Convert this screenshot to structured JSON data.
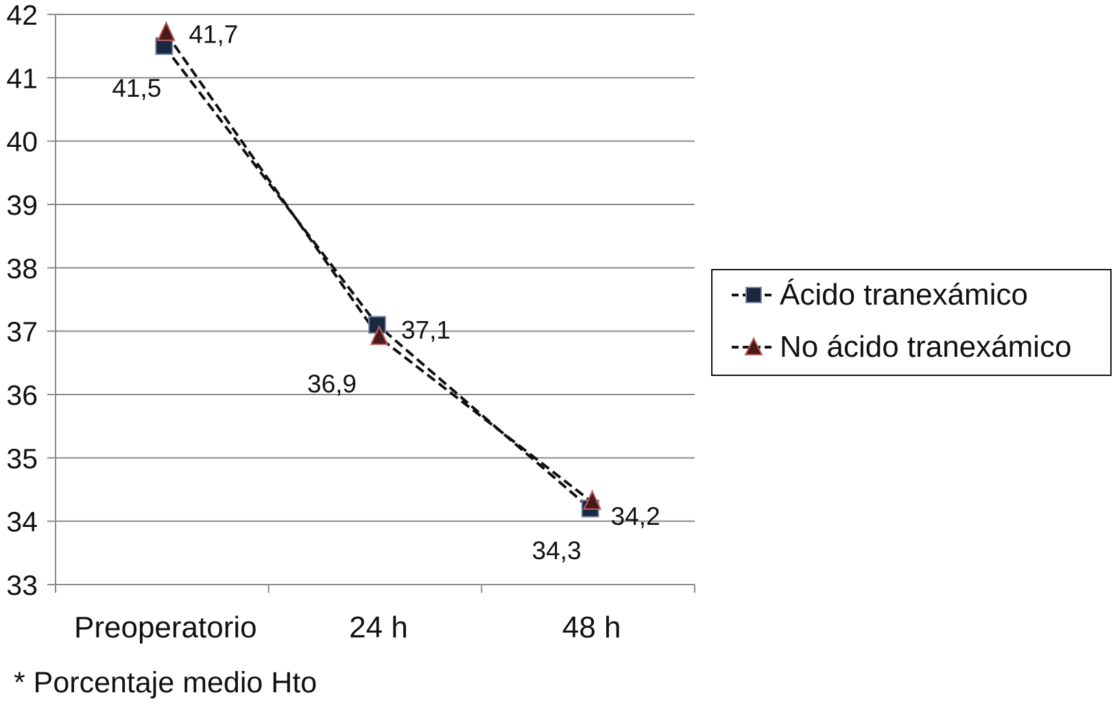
{
  "chart_data": {
    "type": "line",
    "categories": [
      "Preoperatorio",
      "24 h",
      "48 h"
    ],
    "series": [
      {
        "name": "Ácido tranexámico",
        "values": [
          41.5,
          37.1,
          34.2
        ],
        "labels": [
          "41,5",
          "37,1",
          "34,2"
        ],
        "color": "#1a2740",
        "marker": "square",
        "line_style": "dashed"
      },
      {
        "name": "No ácido tranexámico",
        "values": [
          41.7,
          36.9,
          34.3
        ],
        "labels": [
          "41,7",
          "36,9",
          "34,3"
        ],
        "color": "#6b1a1a",
        "marker": "triangle",
        "line_style": "dashed"
      }
    ],
    "ylim": [
      33,
      42
    ],
    "yticks": [
      "33",
      "34",
      "35",
      "36",
      "37",
      "38",
      "39",
      "40",
      "41",
      "42"
    ],
    "grid": true,
    "legend_position": "right",
    "title": "",
    "xlabel": "",
    "ylabel": ""
  },
  "legend": {
    "items": [
      "Ácido tranexámico",
      "No ácido tranexámico"
    ]
  },
  "footnote": "* Porcentaje medio Hto"
}
